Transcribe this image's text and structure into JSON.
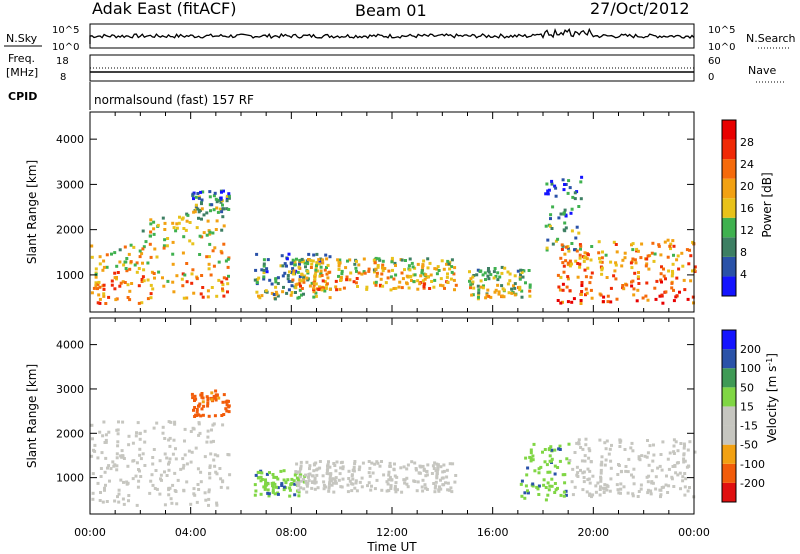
{
  "header": {
    "station": "Adak East (fitACF)",
    "beam": "Beam 01",
    "date": "27/Oct/2012"
  },
  "top_panel": {
    "left_label": "N.Sky",
    "left_ticks": [
      "10^5",
      "10^0"
    ],
    "right_label": "N.Search",
    "right_ticks": [
      "10^5",
      "10^0"
    ]
  },
  "freq_panel": {
    "left_label_line1": "Freq.",
    "left_label_line2": "[MHz]",
    "left_ticks": [
      "18",
      "8"
    ],
    "right_label": "Nave",
    "right_ticks": [
      "60",
      "0"
    ]
  },
  "cpid_panel": {
    "label": "CPID",
    "text": "normalsound (fast) 157 RF"
  },
  "colors": {
    "power_scale": [
      "#1414ff",
      "#2a52a8",
      "#3d7f63",
      "#3fb14f",
      "#e8c21a",
      "#f2a112",
      "#f56a0b",
      "#f02a06",
      "#e80000"
    ],
    "velocity_scale": [
      "#e01010",
      "#f25c0a",
      "#f2a112",
      "#c6c6c0",
      "#c6c6c0",
      "#80d644",
      "#3f9a55",
      "#2a52a8",
      "#1414ff"
    ]
  },
  "chart_data": [
    {
      "type": "heatmap",
      "name": "power-panel",
      "title": "",
      "xlabel": "",
      "ylabel": "Slant Range [km]",
      "xlim": [
        "00:00",
        "24:00"
      ],
      "ylim": [
        180,
        4600
      ],
      "yticks": [
        "1000",
        "2000",
        "3000",
        "4000"
      ],
      "colorbar": {
        "label": "Power [dB]",
        "range": [
          0,
          32
        ],
        "ticks": [
          "4",
          "8",
          "12",
          "16",
          "20",
          "24",
          "28"
        ]
      },
      "regions": [
        {
          "t_start": 0.0,
          "t_end": 2.0,
          "r_low": 400,
          "r_high": 1700,
          "value": 24
        },
        {
          "t_start": 2.0,
          "t_end": 5.5,
          "r_low": 500,
          "r_high": 2400,
          "value": 22
        },
        {
          "t_start": 4.0,
          "t_end": 5.5,
          "r_low": 2400,
          "r_high": 2900,
          "value": 14
        },
        {
          "t_start": 6.5,
          "t_end": 9.5,
          "r_low": 500,
          "r_high": 1500,
          "value": 14
        },
        {
          "t_start": 8.0,
          "t_end": 14.5,
          "r_low": 700,
          "r_high": 1400,
          "value": 22
        },
        {
          "t_start": 15.0,
          "t_end": 17.5,
          "r_low": 500,
          "r_high": 1200,
          "value": 18
        },
        {
          "t_start": 18.0,
          "t_end": 19.5,
          "r_low": 1500,
          "r_high": 3300,
          "value": 12
        },
        {
          "t_start": 18.5,
          "t_end": 24.0,
          "r_low": 400,
          "r_high": 1800,
          "value": 26
        }
      ]
    },
    {
      "type": "heatmap",
      "name": "velocity-panel",
      "title": "",
      "xlabel": "Time UT",
      "ylabel": "Slant Range [km]",
      "xlim": [
        "00:00",
        "24:00"
      ],
      "xticks": [
        "00:00",
        "04:00",
        "08:00",
        "12:00",
        "16:00",
        "20:00",
        "00:00"
      ],
      "ylim": [
        180,
        4600
      ],
      "yticks": [
        "1000",
        "2000",
        "3000",
        "4000"
      ],
      "colorbar": {
        "label": "Velocity [m s-1]",
        "ticks": [
          "200",
          "100",
          "50",
          "15",
          "-15",
          "-50",
          "-100",
          "-200"
        ]
      },
      "regions": [
        {
          "t_start": 0.0,
          "t_end": 5.5,
          "r_low": 400,
          "r_high": 2300,
          "value": 0
        },
        {
          "t_start": 6.5,
          "t_end": 8.5,
          "r_low": 600,
          "r_high": 1200,
          "value": 40
        },
        {
          "t_start": 8.0,
          "t_end": 14.5,
          "r_low": 700,
          "r_high": 1400,
          "value": 0
        },
        {
          "t_start": 17.0,
          "t_end": 19.0,
          "r_low": 500,
          "r_high": 1800,
          "value": 40
        },
        {
          "t_start": 19.0,
          "t_end": 24.0,
          "r_low": 600,
          "r_high": 1900,
          "value": 0
        },
        {
          "t_start": 4.0,
          "t_end": 5.5,
          "r_low": 2400,
          "r_high": 3000,
          "value": -60
        }
      ]
    }
  ]
}
